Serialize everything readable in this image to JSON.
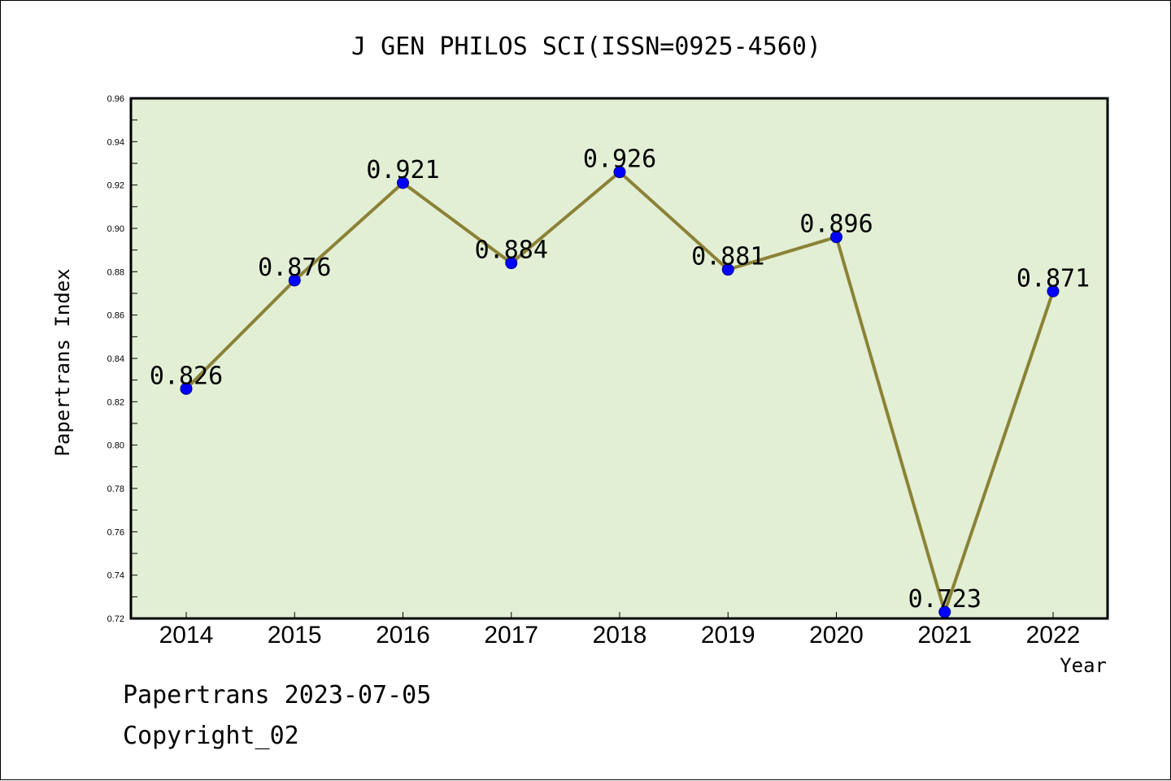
{
  "chart_data": {
    "type": "line",
    "title": "J GEN PHILOS SCI(ISSN=0925-4560)",
    "xlabel": "Year",
    "ylabel": "Papertrans Index",
    "categories": [
      "2014",
      "2015",
      "2016",
      "2017",
      "2018",
      "2019",
      "2020",
      "2021",
      "2022"
    ],
    "values": [
      0.826,
      0.876,
      0.921,
      0.884,
      0.926,
      0.881,
      0.896,
      0.723,
      0.871
    ],
    "value_labels": [
      "0.826",
      "0.876",
      "0.921",
      "0.884",
      "0.926",
      "0.881",
      "0.896",
      "0.723",
      "0.871"
    ],
    "ylim": [
      0.72,
      0.96
    ],
    "yticks": [
      "0.72",
      "0.74",
      "0.76",
      "0.78",
      "0.80",
      "0.82",
      "0.84",
      "0.86",
      "0.88",
      "0.90",
      "0.92",
      "0.94",
      "0.96"
    ],
    "grid": false,
    "colors": {
      "plot_background": "#e2efd5",
      "line": "#8b8236",
      "marker": "#0000ff"
    }
  },
  "footer": {
    "line1": "Papertrans 2023-07-05",
    "line2": "Copyright_02"
  }
}
